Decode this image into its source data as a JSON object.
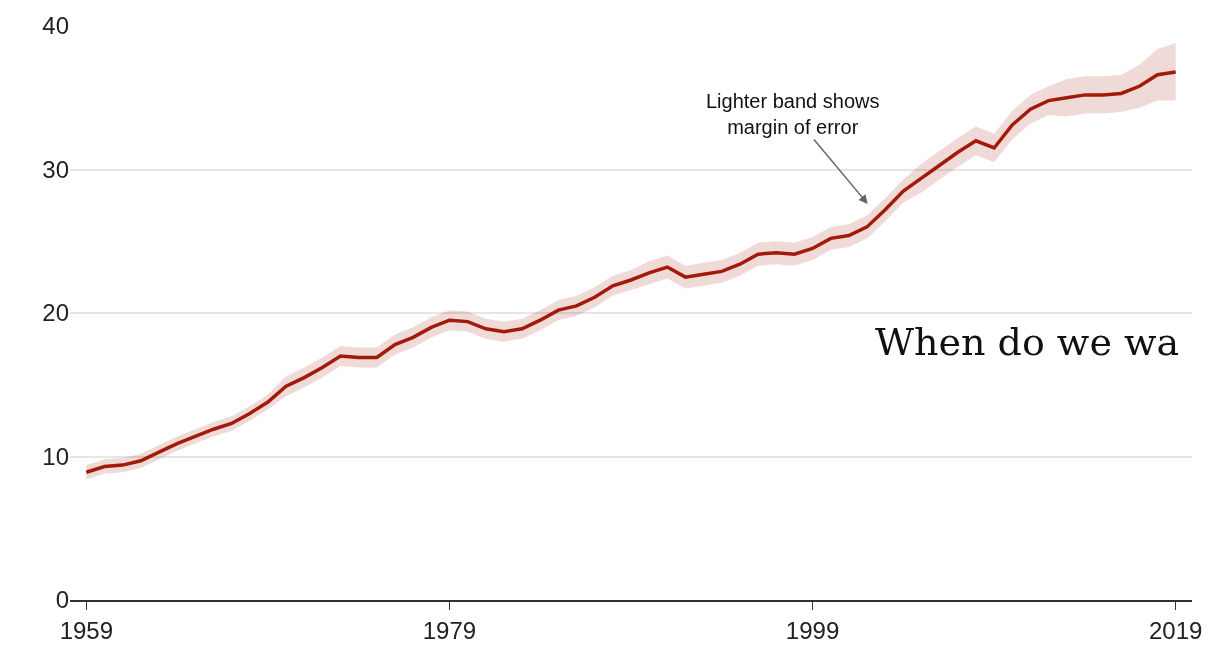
{
  "chart_data": {
    "type": "line",
    "x": [
      1959,
      1960,
      1961,
      1962,
      1963,
      1964,
      1965,
      1966,
      1967,
      1968,
      1969,
      1970,
      1971,
      1972,
      1973,
      1974,
      1975,
      1976,
      1977,
      1978,
      1979,
      1980,
      1981,
      1982,
      1983,
      1984,
      1985,
      1986,
      1987,
      1988,
      1989,
      1990,
      1991,
      1992,
      1993,
      1994,
      1995,
      1996,
      1997,
      1998,
      1999,
      2000,
      2001,
      2002,
      2003,
      2004,
      2005,
      2006,
      2007,
      2008,
      2009,
      2010,
      2011,
      2012,
      2013,
      2014,
      2015,
      2016,
      2017,
      2018,
      2019
    ],
    "series": [
      {
        "color": "#a31a0a",
        "values": [
          8.9,
          9.3,
          9.4,
          9.7,
          10.3,
          10.9,
          11.4,
          11.9,
          12.3,
          13.0,
          13.8,
          14.9,
          15.5,
          16.2,
          17.0,
          16.9,
          16.9,
          17.8,
          18.3,
          19.0,
          19.5,
          19.4,
          18.9,
          18.7,
          18.9,
          19.5,
          20.2,
          20.5,
          21.1,
          21.9,
          22.3,
          22.8,
          23.2,
          22.5,
          22.7,
          22.9,
          23.4,
          24.1,
          24.2,
          24.1,
          24.5,
          25.2,
          25.4,
          26.0,
          27.2,
          28.5,
          29.4,
          30.3,
          31.2,
          32.0,
          31.5,
          33.1,
          34.2,
          34.8,
          35.0,
          35.2,
          35.2,
          35.3,
          35.8,
          36.6,
          36.8
        ],
        "lower": [
          8.4,
          8.8,
          8.9,
          9.2,
          9.8,
          10.4,
          10.9,
          11.4,
          11.8,
          12.5,
          13.3,
          14.2,
          14.8,
          15.5,
          16.3,
          16.2,
          16.2,
          17.1,
          17.6,
          18.3,
          18.8,
          18.7,
          18.2,
          18.0,
          18.2,
          18.8,
          19.5,
          19.8,
          20.4,
          21.2,
          21.6,
          22.0,
          22.4,
          21.7,
          21.9,
          22.1,
          22.6,
          23.3,
          23.4,
          23.3,
          23.7,
          24.4,
          24.6,
          25.2,
          26.4,
          27.7,
          28.4,
          29.3,
          30.2,
          31.0,
          30.5,
          32.1,
          33.2,
          33.8,
          33.7,
          33.9,
          33.9,
          34.0,
          34.3,
          34.8,
          34.8
        ],
        "upper": [
          9.4,
          9.8,
          9.9,
          10.2,
          10.8,
          11.4,
          11.9,
          12.4,
          12.8,
          13.5,
          14.3,
          15.6,
          16.2,
          16.9,
          17.7,
          17.6,
          17.6,
          18.5,
          19.0,
          19.7,
          20.2,
          20.1,
          19.6,
          19.4,
          19.6,
          20.2,
          20.9,
          21.2,
          21.8,
          22.6,
          23.0,
          23.6,
          24.0,
          23.3,
          23.5,
          23.7,
          24.2,
          24.9,
          25.0,
          24.9,
          25.3,
          26.0,
          26.2,
          26.8,
          28.0,
          29.3,
          30.4,
          31.3,
          32.2,
          33.0,
          32.5,
          34.1,
          35.2,
          35.8,
          36.3,
          36.5,
          36.5,
          36.6,
          37.3,
          38.4,
          38.8
        ]
      }
    ],
    "xlim": [
      1958.1,
      2019.9
    ],
    "xticks": [
      1959,
      1979,
      1999,
      2019
    ],
    "ylim": [
      0,
      40
    ],
    "yticks": [
      0,
      10,
      20,
      30,
      40
    ],
    "grid": "y",
    "marker": "none",
    "line_style": "solid",
    "annotations": [
      "Lighter band shows\nmargin of error",
      "When do we wa"
    ]
  }
}
